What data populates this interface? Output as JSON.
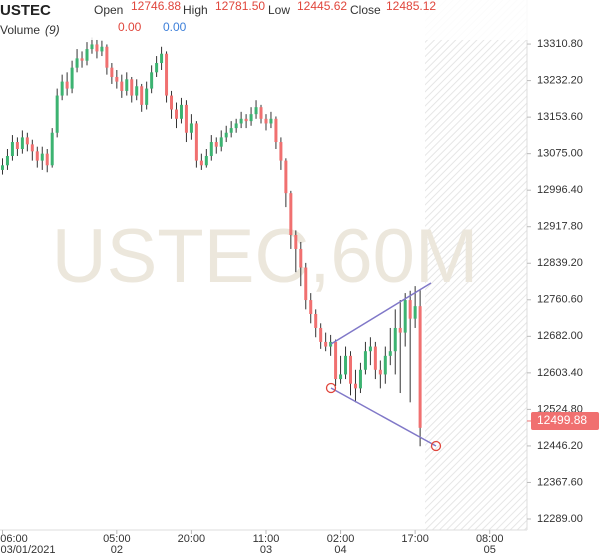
{
  "chart_data": {
    "type": "candlestick",
    "title": "USTEC",
    "watermark": "USTEC,60M",
    "header": {
      "open_label": "Open",
      "open": 12746.88,
      "high_label": "High",
      "high": {
        "value": 12781.5,
        "label": "12781.50"
      },
      "low_label": "Low",
      "low": 12445.62,
      "close_label": "Close",
      "close": 12485.12,
      "volume_label": "Volume",
      "volume_period": "(9)",
      "volume_values": [
        {
          "value": 0,
          "label": "0.00"
        },
        {
          "value": 0,
          "label": "0.00"
        }
      ]
    },
    "current_price": 12499.88,
    "up_color": "#3cb371",
    "down_color": "#f07070",
    "wick_color": "#333333",
    "x": [
      6,
      7,
      8,
      9,
      10,
      11,
      12,
      13,
      14,
      15,
      16,
      17,
      18,
      19,
      20,
      21,
      22,
      23,
      24,
      25,
      26,
      27,
      28,
      29,
      30,
      31,
      32,
      33,
      34,
      35,
      36,
      37,
      38,
      39,
      40,
      41,
      42,
      43,
      44,
      45,
      46,
      47,
      48,
      49,
      50,
      51,
      52,
      53,
      54,
      55,
      56,
      57,
      58,
      59,
      60,
      61,
      62,
      63,
      64,
      65,
      66,
      67,
      68,
      69,
      70,
      71,
      72,
      73,
      74,
      75,
      76,
      77,
      78,
      79,
      80,
      81,
      82,
      83,
      84,
      85,
      86,
      87,
      88,
      89,
      90
    ],
    "open": [
      13040,
      13050,
      13070,
      13100,
      13085,
      13110,
      13095,
      13080,
      13060,
      13075,
      13050,
      13120,
      13200,
      13230,
      13215,
      13260,
      13280,
      13275,
      13300,
      13310,
      13295,
      13305,
      13260,
      13240,
      13230,
      13210,
      13235,
      13200,
      13220,
      13180,
      13215,
      13250,
      13270,
      13290,
      13200,
      13170,
      13150,
      13180,
      13120,
      13140,
      13060,
      13050,
      13070,
      13100,
      13090,
      13110,
      13120,
      13130,
      13140,
      13150,
      13145,
      13160,
      13175,
      13150,
      13140,
      13150,
      13100,
      13060,
      12990,
      12900,
      12870,
      12830,
      12760,
      12730,
      12700,
      12670,
      12660,
      12670,
      12590,
      12600,
      12640,
      12580,
      12570,
      12610,
      12650,
      12660,
      12610,
      12600,
      12640,
      12650,
      12700,
      12690,
      12760,
      12720,
      12746.88
    ],
    "high": [
      13065,
      13085,
      13115,
      13110,
      13125,
      13120,
      13105,
      13090,
      13090,
      13085,
      13130,
      13215,
      13245,
      13250,
      13275,
      13300,
      13295,
      13315,
      13325,
      13320,
      13318,
      13310,
      13270,
      13255,
      13245,
      13250,
      13240,
      13235,
      13225,
      13230,
      13265,
      13285,
      13305,
      13295,
      13210,
      13185,
      13195,
      13190,
      13160,
      13145,
      13075,
      13085,
      13115,
      13110,
      13125,
      13135,
      13145,
      13150,
      13165,
      13160,
      13175,
      13190,
      13180,
      13160,
      13165,
      13155,
      13110,
      13065,
      12995,
      12910,
      12885,
      12840,
      12775,
      12740,
      12710,
      12690,
      12685,
      12675,
      12640,
      12660,
      12650,
      12610,
      12625,
      12670,
      12680,
      12670,
      12630,
      12660,
      12700,
      12740,
      12760,
      12775,
      12780,
      12790,
      12781.5
    ],
    "low": [
      13030,
      13040,
      13060,
      13070,
      13075,
      13080,
      13060,
      13045,
      13040,
      13035,
      13045,
      13110,
      13190,
      13200,
      13205,
      13250,
      13260,
      13265,
      13290,
      13280,
      13285,
      13245,
      13225,
      13215,
      13195,
      13200,
      13185,
      13190,
      13165,
      13170,
      13205,
      13240,
      13255,
      13185,
      13150,
      13130,
      13140,
      13100,
      13105,
      13045,
      13040,
      13045,
      13060,
      13075,
      13080,
      13100,
      13110,
      13120,
      13130,
      13130,
      13135,
      13150,
      13140,
      13125,
      13130,
      13085,
      13040,
      12960,
      12870,
      12820,
      12790,
      12740,
      12710,
      12680,
      12655,
      12650,
      12640,
      12575,
      12580,
      12590,
      12555,
      12540,
      12560,
      12600,
      12620,
      12590,
      12570,
      12580,
      12620,
      12600,
      12560,
      12660,
      12540,
      12700,
      12445.62
    ],
    "close": [
      13050,
      13070,
      13100,
      13085,
      13110,
      13095,
      13080,
      13060,
      13075,
      13050,
      13120,
      13200,
      13230,
      13215,
      13260,
      13280,
      13275,
      13300,
      13310,
      13295,
      13305,
      13260,
      13240,
      13230,
      13210,
      13235,
      13200,
      13220,
      13180,
      13215,
      13250,
      13270,
      13290,
      13200,
      13170,
      13150,
      13180,
      13120,
      13140,
      13060,
      13050,
      13070,
      13100,
      13090,
      13110,
      13120,
      13130,
      13140,
      13150,
      13145,
      13160,
      13175,
      13150,
      13140,
      13150,
      13100,
      13060,
      12990,
      12900,
      12870,
      12830,
      12760,
      12730,
      12700,
      12670,
      12660,
      12670,
      12590,
      12600,
      12640,
      12580,
      12570,
      12610,
      12650,
      12660,
      12610,
      12600,
      12640,
      12650,
      12700,
      12690,
      12760,
      12720,
      12746.88,
      12485.12
    ],
    "xlim": [
      5.5,
      111.5
    ],
    "ylim": [
      12265.3,
      13405.6
    ],
    "xticks": [
      {
        "value": 6,
        "label": "06:00",
        "date": "03/01/2021"
      },
      {
        "value": 29,
        "label": "05:00",
        "date": "02"
      },
      {
        "value": 44,
        "label": "20:00"
      },
      {
        "value": 59,
        "label": "11:00",
        "date": "03"
      },
      {
        "value": 74,
        "label": "02:00",
        "date": "04"
      },
      {
        "value": 89,
        "label": "17:00"
      },
      {
        "value": 104,
        "label": "08:00",
        "date": "05"
      }
    ],
    "yticks": [
      {
        "value": 13310.8,
        "label": "13310.80"
      },
      {
        "value": 13232.2,
        "label": "13232.20"
      },
      {
        "value": 13153.6,
        "label": "13153.60"
      },
      {
        "value": 13075,
        "label": "13075.00"
      },
      {
        "value": 12996.4,
        "label": "12996.40"
      },
      {
        "value": 12917.8,
        "label": "12917.80"
      },
      {
        "value": 12839.2,
        "label": "12839.20"
      },
      {
        "value": 12760.6,
        "label": "12760.60"
      },
      {
        "value": 12682,
        "label": "12682.00"
      },
      {
        "value": 12603.4,
        "label": "12603.40"
      },
      {
        "value": 12524.8,
        "label": "12524.80"
      },
      {
        "value": 12446.2,
        "label": "12446.20"
      },
      {
        "value": 12367.6,
        "label": "12367.60"
      },
      {
        "value": 12289,
        "label": "12289.00"
      }
    ]
  }
}
